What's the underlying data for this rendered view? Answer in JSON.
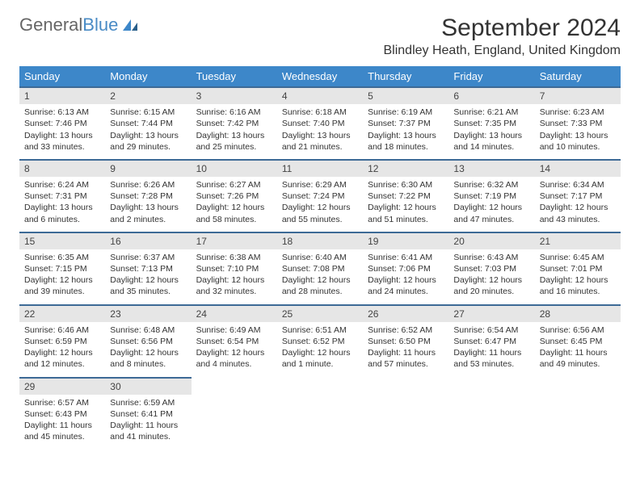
{
  "brand": {
    "part1": "General",
    "part2": "Blue"
  },
  "title": "September 2024",
  "location": "Blindley Heath, England, United Kingdom",
  "colors": {
    "header_bg": "#3d87c9",
    "row_border": "#3d6a96",
    "daynum_bg": "#e6e6e6",
    "text": "#333333",
    "logo_accent": "#4a8bc5"
  },
  "weekdays": [
    "Sunday",
    "Monday",
    "Tuesday",
    "Wednesday",
    "Thursday",
    "Friday",
    "Saturday"
  ],
  "weeks": [
    [
      {
        "n": "1",
        "sr": "Sunrise: 6:13 AM",
        "ss": "Sunset: 7:46 PM",
        "dl1": "Daylight: 13 hours",
        "dl2": "and 33 minutes."
      },
      {
        "n": "2",
        "sr": "Sunrise: 6:15 AM",
        "ss": "Sunset: 7:44 PM",
        "dl1": "Daylight: 13 hours",
        "dl2": "and 29 minutes."
      },
      {
        "n": "3",
        "sr": "Sunrise: 6:16 AM",
        "ss": "Sunset: 7:42 PM",
        "dl1": "Daylight: 13 hours",
        "dl2": "and 25 minutes."
      },
      {
        "n": "4",
        "sr": "Sunrise: 6:18 AM",
        "ss": "Sunset: 7:40 PM",
        "dl1": "Daylight: 13 hours",
        "dl2": "and 21 minutes."
      },
      {
        "n": "5",
        "sr": "Sunrise: 6:19 AM",
        "ss": "Sunset: 7:37 PM",
        "dl1": "Daylight: 13 hours",
        "dl2": "and 18 minutes."
      },
      {
        "n": "6",
        "sr": "Sunrise: 6:21 AM",
        "ss": "Sunset: 7:35 PM",
        "dl1": "Daylight: 13 hours",
        "dl2": "and 14 minutes."
      },
      {
        "n": "7",
        "sr": "Sunrise: 6:23 AM",
        "ss": "Sunset: 7:33 PM",
        "dl1": "Daylight: 13 hours",
        "dl2": "and 10 minutes."
      }
    ],
    [
      {
        "n": "8",
        "sr": "Sunrise: 6:24 AM",
        "ss": "Sunset: 7:31 PM",
        "dl1": "Daylight: 13 hours",
        "dl2": "and 6 minutes."
      },
      {
        "n": "9",
        "sr": "Sunrise: 6:26 AM",
        "ss": "Sunset: 7:28 PM",
        "dl1": "Daylight: 13 hours",
        "dl2": "and 2 minutes."
      },
      {
        "n": "10",
        "sr": "Sunrise: 6:27 AM",
        "ss": "Sunset: 7:26 PM",
        "dl1": "Daylight: 12 hours",
        "dl2": "and 58 minutes."
      },
      {
        "n": "11",
        "sr": "Sunrise: 6:29 AM",
        "ss": "Sunset: 7:24 PM",
        "dl1": "Daylight: 12 hours",
        "dl2": "and 55 minutes."
      },
      {
        "n": "12",
        "sr": "Sunrise: 6:30 AM",
        "ss": "Sunset: 7:22 PM",
        "dl1": "Daylight: 12 hours",
        "dl2": "and 51 minutes."
      },
      {
        "n": "13",
        "sr": "Sunrise: 6:32 AM",
        "ss": "Sunset: 7:19 PM",
        "dl1": "Daylight: 12 hours",
        "dl2": "and 47 minutes."
      },
      {
        "n": "14",
        "sr": "Sunrise: 6:34 AM",
        "ss": "Sunset: 7:17 PM",
        "dl1": "Daylight: 12 hours",
        "dl2": "and 43 minutes."
      }
    ],
    [
      {
        "n": "15",
        "sr": "Sunrise: 6:35 AM",
        "ss": "Sunset: 7:15 PM",
        "dl1": "Daylight: 12 hours",
        "dl2": "and 39 minutes."
      },
      {
        "n": "16",
        "sr": "Sunrise: 6:37 AM",
        "ss": "Sunset: 7:13 PM",
        "dl1": "Daylight: 12 hours",
        "dl2": "and 35 minutes."
      },
      {
        "n": "17",
        "sr": "Sunrise: 6:38 AM",
        "ss": "Sunset: 7:10 PM",
        "dl1": "Daylight: 12 hours",
        "dl2": "and 32 minutes."
      },
      {
        "n": "18",
        "sr": "Sunrise: 6:40 AM",
        "ss": "Sunset: 7:08 PM",
        "dl1": "Daylight: 12 hours",
        "dl2": "and 28 minutes."
      },
      {
        "n": "19",
        "sr": "Sunrise: 6:41 AM",
        "ss": "Sunset: 7:06 PM",
        "dl1": "Daylight: 12 hours",
        "dl2": "and 24 minutes."
      },
      {
        "n": "20",
        "sr": "Sunrise: 6:43 AM",
        "ss": "Sunset: 7:03 PM",
        "dl1": "Daylight: 12 hours",
        "dl2": "and 20 minutes."
      },
      {
        "n": "21",
        "sr": "Sunrise: 6:45 AM",
        "ss": "Sunset: 7:01 PM",
        "dl1": "Daylight: 12 hours",
        "dl2": "and 16 minutes."
      }
    ],
    [
      {
        "n": "22",
        "sr": "Sunrise: 6:46 AM",
        "ss": "Sunset: 6:59 PM",
        "dl1": "Daylight: 12 hours",
        "dl2": "and 12 minutes."
      },
      {
        "n": "23",
        "sr": "Sunrise: 6:48 AM",
        "ss": "Sunset: 6:56 PM",
        "dl1": "Daylight: 12 hours",
        "dl2": "and 8 minutes."
      },
      {
        "n": "24",
        "sr": "Sunrise: 6:49 AM",
        "ss": "Sunset: 6:54 PM",
        "dl1": "Daylight: 12 hours",
        "dl2": "and 4 minutes."
      },
      {
        "n": "25",
        "sr": "Sunrise: 6:51 AM",
        "ss": "Sunset: 6:52 PM",
        "dl1": "Daylight: 12 hours",
        "dl2": "and 1 minute."
      },
      {
        "n": "26",
        "sr": "Sunrise: 6:52 AM",
        "ss": "Sunset: 6:50 PM",
        "dl1": "Daylight: 11 hours",
        "dl2": "and 57 minutes."
      },
      {
        "n": "27",
        "sr": "Sunrise: 6:54 AM",
        "ss": "Sunset: 6:47 PM",
        "dl1": "Daylight: 11 hours",
        "dl2": "and 53 minutes."
      },
      {
        "n": "28",
        "sr": "Sunrise: 6:56 AM",
        "ss": "Sunset: 6:45 PM",
        "dl1": "Daylight: 11 hours",
        "dl2": "and 49 minutes."
      }
    ],
    [
      {
        "n": "29",
        "sr": "Sunrise: 6:57 AM",
        "ss": "Sunset: 6:43 PM",
        "dl1": "Daylight: 11 hours",
        "dl2": "and 45 minutes."
      },
      {
        "n": "30",
        "sr": "Sunrise: 6:59 AM",
        "ss": "Sunset: 6:41 PM",
        "dl1": "Daylight: 11 hours",
        "dl2": "and 41 minutes."
      },
      null,
      null,
      null,
      null,
      null
    ]
  ]
}
